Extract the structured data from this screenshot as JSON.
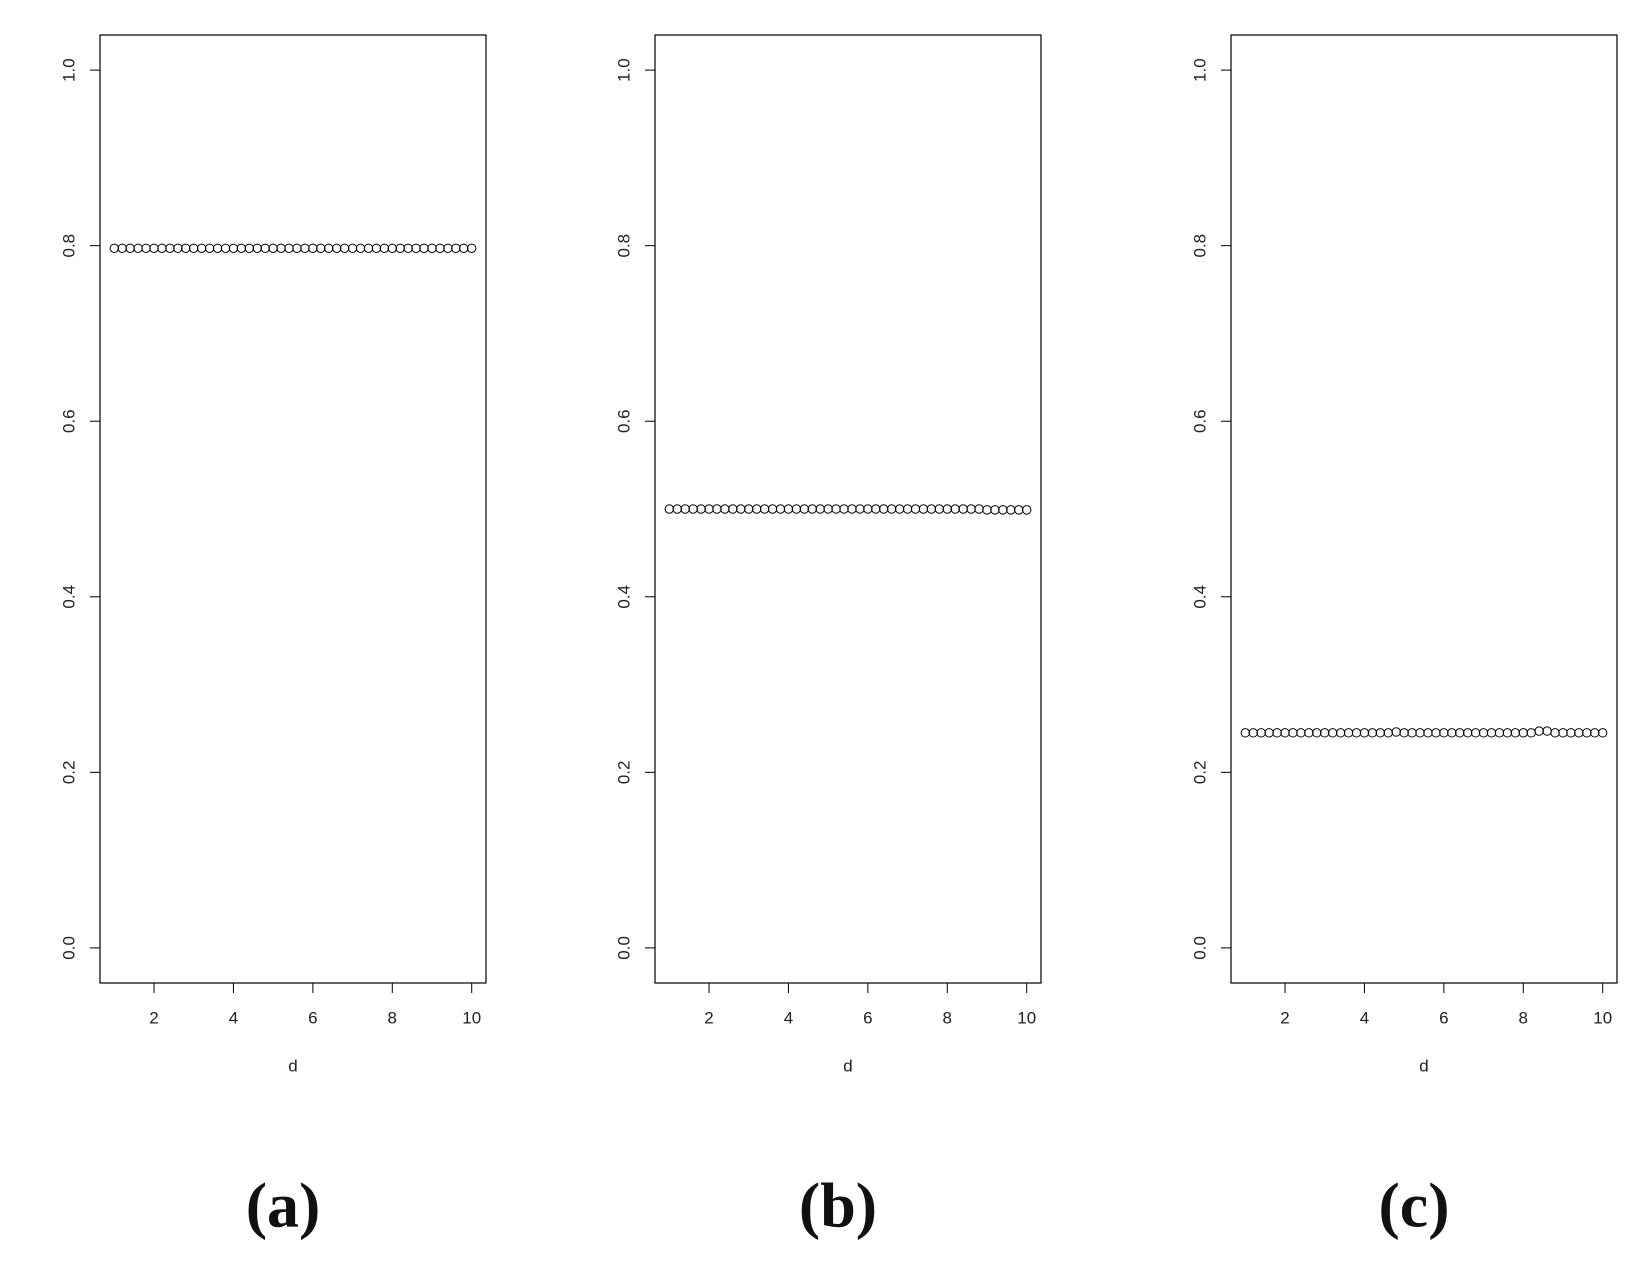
{
  "chart_data": [
    {
      "type": "scatter",
      "caption": "(a)",
      "x_label": "d",
      "x": [
        1,
        1.2,
        1.4,
        1.6,
        1.8,
        2,
        2.2,
        2.4,
        2.6,
        2.8,
        3,
        3.2,
        3.4,
        3.6,
        3.8,
        4,
        4.2,
        4.4,
        4.6,
        4.8,
        5,
        5.2,
        5.4,
        5.6,
        5.8,
        6,
        6.2,
        6.4,
        6.6,
        6.8,
        7,
        7.2,
        7.4,
        7.6,
        7.8,
        8,
        8.2,
        8.4,
        8.6,
        8.8,
        9,
        9.2,
        9.4,
        9.6,
        9.8,
        10
      ],
      "values": [
        0.797,
        0.797,
        0.797,
        0.797,
        0.797,
        0.797,
        0.797,
        0.797,
        0.797,
        0.797,
        0.797,
        0.797,
        0.797,
        0.797,
        0.797,
        0.797,
        0.797,
        0.797,
        0.797,
        0.797,
        0.797,
        0.797,
        0.797,
        0.797,
        0.797,
        0.797,
        0.797,
        0.797,
        0.797,
        0.797,
        0.797,
        0.797,
        0.797,
        0.797,
        0.797,
        0.797,
        0.797,
        0.797,
        0.797,
        0.797,
        0.797,
        0.797,
        0.797,
        0.797,
        0.797,
        0.797
      ],
      "color": "#000000",
      "xlim": [
        0.64,
        10.36
      ],
      "ylim": [
        -0.04,
        1.04
      ],
      "xticks": [
        2,
        4,
        6,
        8,
        10
      ],
      "yticks": [
        {
          "value": 0,
          "label": "0.0"
        },
        0.2,
        0.4,
        0.6,
        0.8,
        {
          "value": 1,
          "label": "1.0"
        }
      ]
    },
    {
      "type": "scatter",
      "caption": "(b)",
      "x_label": "d",
      "x": [
        1,
        1.2,
        1.4,
        1.6,
        1.8,
        2,
        2.2,
        2.4,
        2.6,
        2.8,
        3,
        3.2,
        3.4,
        3.6,
        3.8,
        4,
        4.2,
        4.4,
        4.6,
        4.8,
        5,
        5.2,
        5.4,
        5.6,
        5.8,
        6,
        6.2,
        6.4,
        6.6,
        6.8,
        7,
        7.2,
        7.4,
        7.6,
        7.8,
        8,
        8.2,
        8.4,
        8.6,
        8.8,
        9,
        9.2,
        9.4,
        9.6,
        9.8,
        10
      ],
      "values": [
        0.5,
        0.5,
        0.5,
        0.5,
        0.5,
        0.5,
        0.5,
        0.5,
        0.5,
        0.5,
        0.5,
        0.5,
        0.5,
        0.5,
        0.5,
        0.5,
        0.5,
        0.5,
        0.5,
        0.5,
        0.5,
        0.5,
        0.5,
        0.5,
        0.5,
        0.5,
        0.5,
        0.5,
        0.5,
        0.5,
        0.5,
        0.5,
        0.5,
        0.5,
        0.5,
        0.5,
        0.5,
        0.5,
        0.5,
        0.5,
        0.499,
        0.499,
        0.499,
        0.499,
        0.499,
        0.499
      ],
      "color": "#000000",
      "xlim": [
        0.64,
        10.36
      ],
      "ylim": [
        -0.04,
        1.04
      ],
      "xticks": [
        2,
        4,
        6,
        8,
        10
      ],
      "yticks": [
        {
          "value": 0,
          "label": "0.0"
        },
        0.2,
        0.4,
        0.6,
        0.8,
        {
          "value": 1,
          "label": "1.0"
        }
      ]
    },
    {
      "type": "scatter",
      "caption": "(c)",
      "x_label": "d",
      "x": [
        1,
        1.2,
        1.4,
        1.6,
        1.8,
        2,
        2.2,
        2.4,
        2.6,
        2.8,
        3,
        3.2,
        3.4,
        3.6,
        3.8,
        4,
        4.2,
        4.4,
        4.6,
        4.8,
        5,
        5.2,
        5.4,
        5.6,
        5.8,
        6,
        6.2,
        6.4,
        6.6,
        6.8,
        7,
        7.2,
        7.4,
        7.6,
        7.8,
        8,
        8.2,
        8.4,
        8.6,
        8.8,
        9,
        9.2,
        9.4,
        9.6,
        9.8,
        10
      ],
      "values": [
        0.245,
        0.245,
        0.245,
        0.245,
        0.245,
        0.245,
        0.245,
        0.245,
        0.245,
        0.245,
        0.245,
        0.245,
        0.245,
        0.245,
        0.245,
        0.245,
        0.245,
        0.245,
        0.245,
        0.246,
        0.245,
        0.245,
        0.245,
        0.245,
        0.245,
        0.245,
        0.245,
        0.245,
        0.245,
        0.245,
        0.245,
        0.245,
        0.245,
        0.245,
        0.245,
        0.245,
        0.245,
        0.247,
        0.247,
        0.245,
        0.245,
        0.245,
        0.245,
        0.245,
        0.245,
        0.245
      ],
      "color": "#000000",
      "xlim": [
        0.64,
        10.36
      ],
      "ylim": [
        -0.04,
        1.04
      ],
      "xticks": [
        2,
        4,
        6,
        8,
        10
      ],
      "yticks": [
        {
          "value": 0,
          "label": "0.0"
        },
        0.2,
        0.4,
        0.6,
        0.8,
        {
          "value": 1,
          "label": "1.0"
        }
      ]
    }
  ]
}
